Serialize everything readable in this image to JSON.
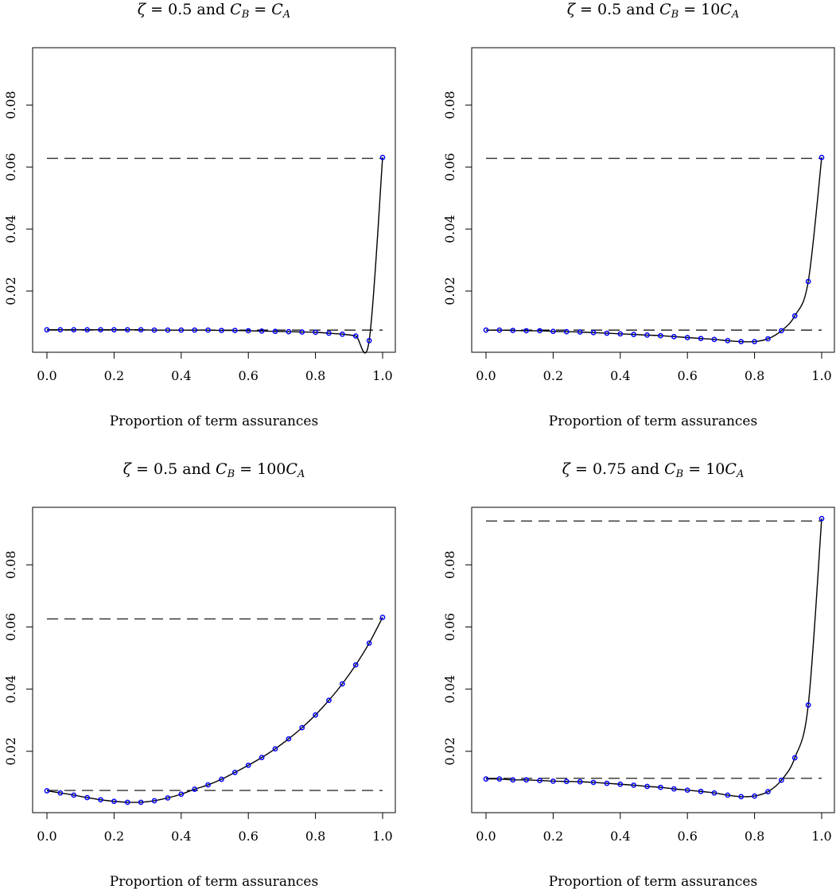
{
  "chart_data": [
    {
      "type": "line",
      "title": "ζ = 0.5 and C_B = C_A",
      "xlabel": "Proportion of term assurances",
      "ylabel": "",
      "xlim": [
        0,
        1
      ],
      "ylim": [
        0,
        0.0985
      ],
      "x_ticks": [
        "0.0",
        "0.2",
        "0.4",
        "0.6",
        "0.8",
        "1.0"
      ],
      "y_ticks": [
        "0.02",
        "0.04",
        "0.06",
        "0.08"
      ],
      "grid": false,
      "x": [
        0,
        0.04,
        0.08,
        0.12,
        0.16,
        0.2,
        0.24,
        0.28,
        0.32,
        0.36,
        0.4,
        0.44,
        0.48,
        0.52,
        0.56,
        0.6,
        0.64,
        0.68,
        0.72,
        0.76,
        0.8,
        0.84,
        0.88,
        0.92,
        0.96,
        1.0
      ],
      "values": [
        0.0075,
        0.0075,
        0.0075,
        0.0075,
        0.0075,
        0.0075,
        0.0075,
        0.0075,
        0.0074,
        0.0074,
        0.0074,
        0.0074,
        0.0074,
        0.0073,
        0.0073,
        0.0072,
        0.0071,
        0.007,
        0.0069,
        0.0068,
        0.0067,
        0.0064,
        0.0061,
        0.0055,
        0.004,
        0.0631
      ],
      "reference_lines": [
        0.0074,
        0.0628
      ]
    },
    {
      "type": "line",
      "title": "ζ = 0.5 and C_B = 10C_A",
      "xlabel": "Proportion of term assurances",
      "ylabel": "",
      "xlim": [
        0,
        1
      ],
      "ylim": [
        0,
        0.0985
      ],
      "x_ticks": [
        "0.0",
        "0.2",
        "0.4",
        "0.6",
        "0.8",
        "1.0"
      ],
      "y_ticks": [
        "0.02",
        "0.04",
        "0.06",
        "0.08"
      ],
      "grid": false,
      "x": [
        0,
        0.04,
        0.08,
        0.12,
        0.16,
        0.2,
        0.24,
        0.28,
        0.32,
        0.36,
        0.4,
        0.44,
        0.48,
        0.52,
        0.56,
        0.6,
        0.64,
        0.68,
        0.72,
        0.76,
        0.8,
        0.84,
        0.88,
        0.92,
        0.96,
        1.0
      ],
      "values": [
        0.0074,
        0.0074,
        0.0073,
        0.0072,
        0.0072,
        0.007,
        0.0069,
        0.0068,
        0.0066,
        0.0064,
        0.0062,
        0.006,
        0.0058,
        0.0056,
        0.0053,
        0.005,
        0.0047,
        0.0044,
        0.004,
        0.0037,
        0.0037,
        0.0046,
        0.0072,
        0.012,
        0.0231,
        0.0631
      ],
      "reference_lines": [
        0.0074,
        0.0628
      ]
    },
    {
      "type": "line",
      "title": "ζ = 0.5 and C_B = 100C_A",
      "xlabel": "Proportion of term assurances",
      "ylabel": "",
      "xlim": [
        0,
        1
      ],
      "ylim": [
        0,
        0.0985
      ],
      "x_ticks": [
        "0.0",
        "0.2",
        "0.4",
        "0.6",
        "0.8",
        "1.0"
      ],
      "y_ticks": [
        "0.02",
        "0.04",
        "0.06",
        "0.08"
      ],
      "grid": false,
      "x": [
        0,
        0.04,
        0.08,
        0.12,
        0.16,
        0.2,
        0.24,
        0.28,
        0.32,
        0.36,
        0.4,
        0.44,
        0.48,
        0.52,
        0.56,
        0.6,
        0.64,
        0.68,
        0.72,
        0.76,
        0.8,
        0.84,
        0.88,
        0.92,
        0.96,
        1.0
      ],
      "values": [
        0.0073,
        0.0066,
        0.0059,
        0.0051,
        0.0044,
        0.0039,
        0.0036,
        0.0036,
        0.0041,
        0.005,
        0.0062,
        0.0078,
        0.0092,
        0.011,
        0.0132,
        0.0155,
        0.018,
        0.0208,
        0.024,
        0.0276,
        0.0317,
        0.0364,
        0.0417,
        0.0478,
        0.0548,
        0.0631
      ],
      "reference_lines": [
        0.0074,
        0.0626
      ]
    },
    {
      "type": "line",
      "title": "ζ = 0.75 and C_B = 10C_A",
      "xlabel": "Proportion of term assurances",
      "ylabel": "",
      "xlim": [
        0,
        1
      ],
      "ylim": [
        0,
        0.0985
      ],
      "x_ticks": [
        "0.0",
        "0.2",
        "0.4",
        "0.6",
        "0.8",
        "1.0"
      ],
      "y_ticks": [
        "0.02",
        "0.04",
        "0.06",
        "0.08"
      ],
      "grid": false,
      "x": [
        0,
        0.04,
        0.08,
        0.12,
        0.16,
        0.2,
        0.24,
        0.28,
        0.32,
        0.36,
        0.4,
        0.44,
        0.48,
        0.52,
        0.56,
        0.6,
        0.64,
        0.68,
        0.72,
        0.76,
        0.8,
        0.84,
        0.88,
        0.92,
        0.96,
        1.0
      ],
      "values": [
        0.0111,
        0.0111,
        0.0108,
        0.0108,
        0.0106,
        0.0104,
        0.0103,
        0.0102,
        0.01,
        0.0097,
        0.0094,
        0.0091,
        0.0087,
        0.0084,
        0.0079,
        0.0075,
        0.0071,
        0.0066,
        0.0059,
        0.0054,
        0.0056,
        0.007,
        0.0107,
        0.0179,
        0.0349,
        0.0949
      ],
      "reference_lines": [
        0.0113,
        0.0941
      ]
    }
  ],
  "colors": {
    "points": "#0000ff",
    "curve": "#000000",
    "reference": "#000000"
  }
}
